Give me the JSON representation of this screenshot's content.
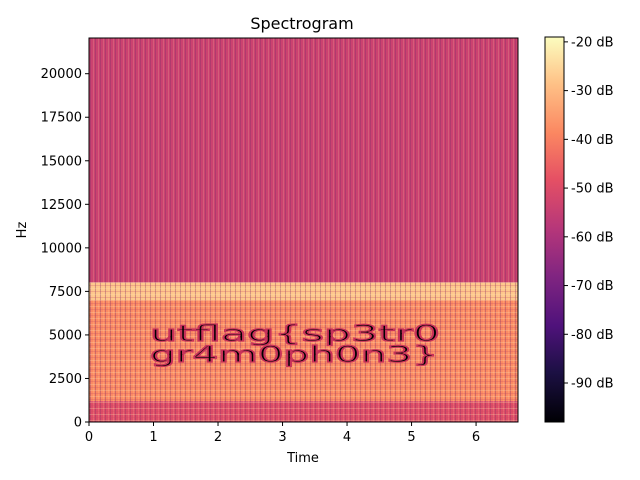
{
  "chart_data": {
    "type": "heatmap",
    "title": "Spectrogram",
    "xlabel": "Time",
    "ylabel": "Hz",
    "xlim": [
      0,
      6.65
    ],
    "ylim": [
      0,
      22050
    ],
    "x_ticks": [
      0,
      1,
      2,
      3,
      4,
      5,
      6
    ],
    "y_ticks": [
      0,
      2500,
      5000,
      7500,
      10000,
      12500,
      15000,
      17500,
      20000
    ],
    "colorbar": {
      "range": [
        -98,
        -19
      ],
      "ticks": [
        -20,
        -30,
        -40,
        -50,
        -60,
        -70,
        -80,
        -90
      ],
      "tick_labels": [
        "-20 dB",
        "-30 dB",
        "-40 dB",
        "-50 dB",
        "-60 dB",
        "-70 dB",
        "-80 dB",
        "-90 dB"
      ],
      "colormap": "magma"
    },
    "regions": [
      {
        "freq_range": [
          8000,
          22050
        ],
        "level_db": -54,
        "description": "high band"
      },
      {
        "freq_range": [
          7000,
          8000
        ],
        "level_db": -28,
        "description": "bright band edge"
      },
      {
        "freq_range": [
          1200,
          7000
        ],
        "level_db": -38,
        "description": "mid band"
      },
      {
        "freq_range": [
          0,
          1200
        ],
        "level_db": -50,
        "description": "low band"
      }
    ],
    "hidden_text_lines": [
      "utflag{sp3tr0",
      "gr4m0ph0n3}"
    ]
  }
}
